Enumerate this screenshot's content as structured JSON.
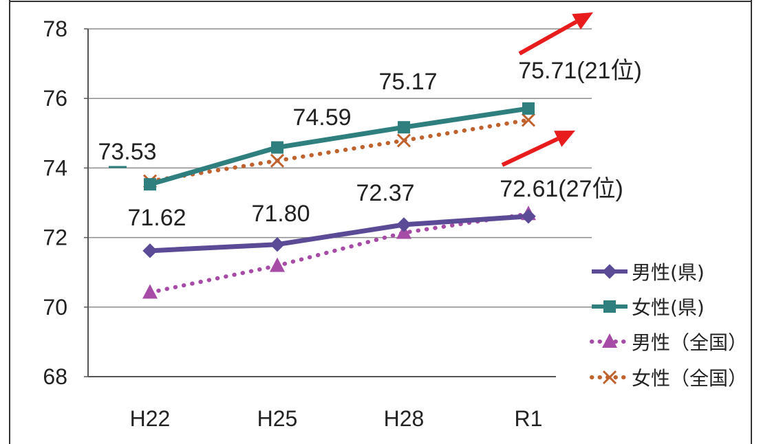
{
  "chart_data": {
    "type": "line",
    "categories": [
      "H22",
      "H25",
      "H28",
      "R1"
    ],
    "ylim": [
      68,
      78
    ],
    "yticks": [
      68,
      70,
      72,
      74,
      76,
      78
    ],
    "grid": true,
    "legend_position": "right",
    "series": [
      {
        "name": "男性(県)",
        "values": [
          71.62,
          71.8,
          72.37,
          72.61
        ],
        "color": "#5b4b96",
        "style": "solid",
        "marker": "diamond"
      },
      {
        "name": "女性(県)",
        "values": [
          73.53,
          74.59,
          75.17,
          75.71
        ],
        "color": "#2f7f7f",
        "style": "solid",
        "marker": "square"
      },
      {
        "name": "男性（全国）",
        "values": [
          70.42,
          71.19,
          72.14,
          72.68
        ],
        "color": "#a64ca6",
        "style": "dotted",
        "marker": "triangle"
      },
      {
        "name": "女性（全国）",
        "values": [
          73.62,
          74.21,
          74.79,
          75.38
        ],
        "color": "#c0622d",
        "style": "dotted",
        "marker": "x"
      }
    ],
    "data_labels": [
      {
        "series": 0,
        "index": 0,
        "text": "71.62"
      },
      {
        "series": 0,
        "index": 1,
        "text": "71.80"
      },
      {
        "series": 0,
        "index": 2,
        "text": "72.37"
      },
      {
        "series": 0,
        "index": 3,
        "text": "72.61(27位)"
      },
      {
        "series": 1,
        "index": 0,
        "text": "73.53"
      },
      {
        "series": 1,
        "index": 1,
        "text": "74.59"
      },
      {
        "series": 1,
        "index": 2,
        "text": "75.17"
      },
      {
        "series": 1,
        "index": 3,
        "text": "75.71(21位)"
      }
    ],
    "annotations": [
      {
        "type": "arrow",
        "color": "#e81c1c",
        "points_to": "女性(県) R1"
      },
      {
        "type": "arrow",
        "color": "#e81c1c",
        "points_to": "男性(県) R1"
      }
    ]
  }
}
